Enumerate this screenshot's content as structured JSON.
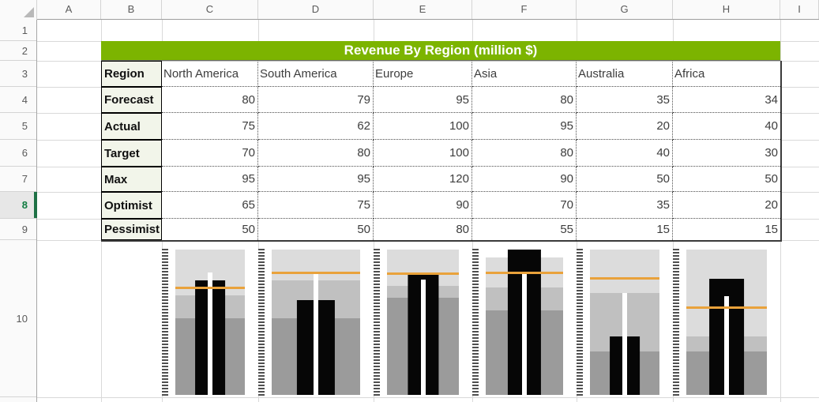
{
  "app": {
    "kind": "spreadsheet"
  },
  "grid": {
    "column_headers": [
      "A",
      "B",
      "C",
      "D",
      "E",
      "F",
      "G",
      "H",
      "I"
    ],
    "row_headers": [
      "1",
      "2",
      "3",
      "4",
      "5",
      "6",
      "7",
      "8",
      "9",
      "10"
    ],
    "active_row": "8"
  },
  "title": "Revenue By Region (million $)",
  "table": {
    "corner_label": "Region",
    "columns": [
      "North America",
      "South America",
      "Europe",
      "Asia",
      "Australia",
      "Africa"
    ],
    "rows": [
      {
        "label": "Forecast",
        "values": [
          "80",
          "79",
          "95",
          "80",
          "35",
          "34"
        ]
      },
      {
        "label": "Actual",
        "values": [
          "75",
          "62",
          "100",
          "95",
          "20",
          "40"
        ]
      },
      {
        "label": "Target",
        "values": [
          "70",
          "80",
          "100",
          "80",
          "40",
          "30"
        ]
      },
      {
        "label": "Max",
        "values": [
          "95",
          "95",
          "120",
          "90",
          "50",
          "50"
        ]
      },
      {
        "label": "Optimist",
        "values": [
          "65",
          "75",
          "90",
          "70",
          "35",
          "20"
        ]
      },
      {
        "label": "Pessimist",
        "values": [
          "50",
          "50",
          "80",
          "55",
          "15",
          "15"
        ]
      }
    ]
  },
  "chart_data": {
    "type": "bar",
    "subtype": "bullet",
    "title": "Revenue By Region (million $)",
    "categories": [
      "North America",
      "South America",
      "Europe",
      "Asia",
      "Australia",
      "Africa"
    ],
    "series": [
      {
        "name": "Forecast",
        "role": "forecast",
        "values": [
          80,
          79,
          95,
          80,
          35,
          34
        ]
      },
      {
        "name": "Actual",
        "role": "actual",
        "values": [
          75,
          62,
          100,
          95,
          20,
          40
        ]
      },
      {
        "name": "Target",
        "role": "target",
        "values": [
          70,
          80,
          100,
          80,
          40,
          30
        ]
      },
      {
        "name": "Max",
        "role": "max",
        "values": [
          95,
          95,
          120,
          90,
          50,
          50
        ]
      },
      {
        "name": "Optimist",
        "role": "optimist",
        "values": [
          65,
          75,
          90,
          70,
          35,
          20
        ]
      },
      {
        "name": "Pessimist",
        "role": "pessimist",
        "values": [
          50,
          50,
          80,
          55,
          15,
          15
        ]
      }
    ],
    "layout": {
      "one_chart_per_category": true,
      "scale": "0 to max of all series per category",
      "grid": false,
      "legend": "none",
      "encodings": {
        "actual": "black vertical bar",
        "forecast": "white center line marker",
        "target": "orange horizontal line on top",
        "pessimist": "dark gray zone 0..value",
        "optimist": "medium gray zone pessimist..value",
        "max": "light gray zone optimist..value"
      }
    }
  },
  "icons": {
    "select_all_corner": "gray lower-right triangle"
  },
  "colors": {
    "title_bar": "#7CB400",
    "title_text": "#FFFFFF",
    "label_cell_bg": "#F2F5EA",
    "active_row_green": "#1E7145",
    "active_row_number": "#107C41",
    "target_line": "#E9A23B",
    "actual_bar": "#060606",
    "forecast_marker": "#FFFFFF",
    "zone_light": "#DCDCDC",
    "zone_medium": "#C0C0C0",
    "zone_dark": "#9B9B9B",
    "gridline": "#D9D9D9"
  }
}
